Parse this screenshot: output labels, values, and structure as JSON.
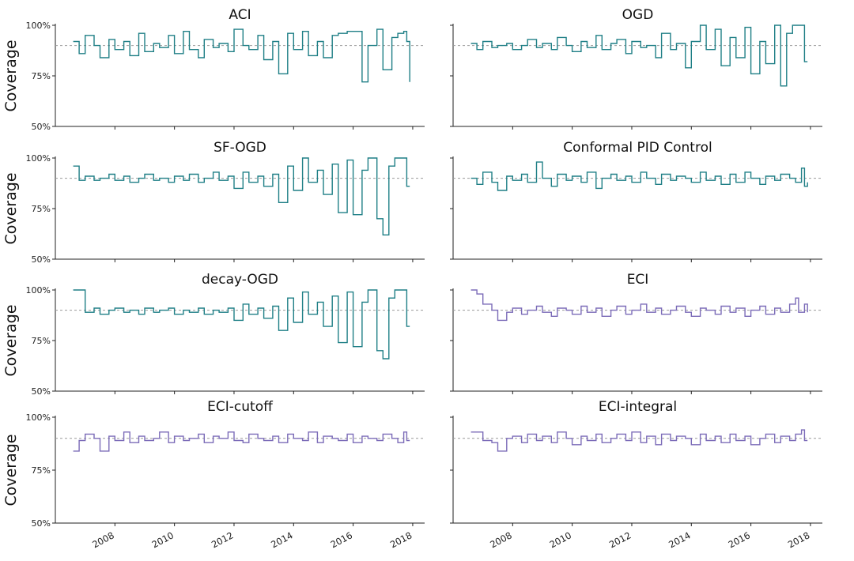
{
  "figure": {
    "ylabel": "Coverage",
    "x_ticks": [
      "2008",
      "2010",
      "2012",
      "2014",
      "2016",
      "2018"
    ],
    "y_ticks": [
      "100%",
      "75%",
      "50%"
    ],
    "colors": {
      "teal": "#1f7f86",
      "purple": "#7b6bb8",
      "reference": "#999999",
      "axis": "#222222"
    }
  },
  "chart_data": [
    {
      "type": "line",
      "title": "ACI",
      "color": "teal",
      "xlim": [
        2006.0,
        2018.4
      ],
      "ylim": [
        50,
        100
      ],
      "target": 90,
      "series": [
        {
          "name": "ACI",
          "x": [
            2006.6,
            2006.8,
            2007.0,
            2007.3,
            2007.5,
            2007.8,
            2008.0,
            2008.3,
            2008.5,
            2008.8,
            2009.0,
            2009.3,
            2009.5,
            2009.8,
            2010.0,
            2010.3,
            2010.5,
            2010.8,
            2011.0,
            2011.3,
            2011.5,
            2011.8,
            2012.0,
            2012.3,
            2012.5,
            2012.8,
            2013.0,
            2013.3,
            2013.5,
            2013.8,
            2014.0,
            2014.3,
            2014.5,
            2014.8,
            2015.0,
            2015.3,
            2015.5,
            2015.8,
            2016.0,
            2016.3,
            2016.5,
            2016.8,
            2017.0,
            2017.3,
            2017.5,
            2017.7,
            2017.8,
            2017.9
          ],
          "values": [
            92,
            86,
            95,
            90,
            84,
            93,
            88,
            92,
            85,
            96,
            87,
            91,
            89,
            95,
            86,
            97,
            88,
            84,
            93,
            89,
            91,
            87,
            98,
            90,
            88,
            95,
            83,
            92,
            76,
            96,
            88,
            97,
            85,
            92,
            84,
            95,
            96,
            97,
            97,
            72,
            90,
            98,
            78,
            94,
            96,
            97,
            92,
            72
          ]
        }
      ]
    },
    {
      "type": "line",
      "title": "OGD",
      "color": "teal",
      "xlim": [
        2006.0,
        2018.4
      ],
      "ylim": [
        50,
        100
      ],
      "target": 90,
      "series": [
        {
          "name": "OGD",
          "x": [
            2006.6,
            2006.8,
            2007.0,
            2007.3,
            2007.5,
            2007.8,
            2008.0,
            2008.3,
            2008.5,
            2008.8,
            2009.0,
            2009.3,
            2009.5,
            2009.8,
            2010.0,
            2010.3,
            2010.5,
            2010.8,
            2011.0,
            2011.3,
            2011.5,
            2011.8,
            2012.0,
            2012.3,
            2012.5,
            2012.8,
            2013.0,
            2013.3,
            2013.5,
            2013.8,
            2014.0,
            2014.3,
            2014.5,
            2014.8,
            2015.0,
            2015.3,
            2015.5,
            2015.8,
            2016.0,
            2016.3,
            2016.5,
            2016.8,
            2017.0,
            2017.2,
            2017.4,
            2017.6,
            2017.8,
            2017.9
          ],
          "values": [
            91,
            88,
            92,
            89,
            90,
            91,
            88,
            90,
            93,
            89,
            91,
            88,
            94,
            90,
            87,
            92,
            89,
            95,
            88,
            91,
            93,
            86,
            92,
            89,
            90,
            84,
            96,
            88,
            91,
            79,
            92,
            100,
            88,
            98,
            80,
            94,
            84,
            99,
            76,
            92,
            81,
            100,
            70,
            96,
            100,
            100,
            82,
            82
          ]
        }
      ]
    },
    {
      "type": "line",
      "title": "SF-OGD",
      "color": "teal",
      "xlim": [
        2006.0,
        2018.4
      ],
      "ylim": [
        50,
        100
      ],
      "target": 90,
      "series": [
        {
          "name": "SF-OGD",
          "x": [
            2006.6,
            2006.8,
            2007.0,
            2007.3,
            2007.5,
            2007.8,
            2008.0,
            2008.3,
            2008.5,
            2008.8,
            2009.0,
            2009.3,
            2009.5,
            2009.8,
            2010.0,
            2010.3,
            2010.5,
            2010.8,
            2011.0,
            2011.3,
            2011.5,
            2011.8,
            2012.0,
            2012.3,
            2012.5,
            2012.8,
            2013.0,
            2013.3,
            2013.5,
            2013.8,
            2014.0,
            2014.3,
            2014.5,
            2014.8,
            2015.0,
            2015.3,
            2015.5,
            2015.8,
            2016.0,
            2016.3,
            2016.5,
            2016.8,
            2017.0,
            2017.2,
            2017.4,
            2017.6,
            2017.8,
            2017.9
          ],
          "values": [
            96,
            89,
            91,
            89,
            90,
            92,
            89,
            91,
            88,
            90,
            92,
            89,
            90,
            88,
            91,
            89,
            92,
            88,
            90,
            93,
            89,
            91,
            85,
            93,
            88,
            91,
            86,
            92,
            78,
            96,
            84,
            100,
            88,
            94,
            82,
            97,
            73,
            99,
            72,
            94,
            100,
            70,
            62,
            96,
            100,
            100,
            86,
            86
          ]
        }
      ]
    },
    {
      "type": "line",
      "title": "Conformal PID Control",
      "color": "teal",
      "xlim": [
        2006.0,
        2018.4
      ],
      "ylim": [
        50,
        100
      ],
      "target": 90,
      "series": [
        {
          "name": "Conformal PID Control",
          "x": [
            2006.6,
            2006.8,
            2007.0,
            2007.3,
            2007.5,
            2007.8,
            2008.0,
            2008.3,
            2008.5,
            2008.8,
            2009.0,
            2009.3,
            2009.5,
            2009.8,
            2010.0,
            2010.3,
            2010.5,
            2010.8,
            2011.0,
            2011.3,
            2011.5,
            2011.8,
            2012.0,
            2012.3,
            2012.5,
            2012.8,
            2013.0,
            2013.3,
            2013.5,
            2013.8,
            2014.0,
            2014.3,
            2014.5,
            2014.8,
            2015.0,
            2015.3,
            2015.5,
            2015.8,
            2016.0,
            2016.3,
            2016.5,
            2016.8,
            2017.0,
            2017.3,
            2017.5,
            2017.7,
            2017.8,
            2017.9
          ],
          "values": [
            90,
            87,
            93,
            88,
            84,
            91,
            89,
            92,
            88,
            98,
            90,
            86,
            92,
            89,
            91,
            88,
            93,
            85,
            90,
            92,
            89,
            91,
            88,
            93,
            90,
            87,
            92,
            89,
            91,
            90,
            88,
            93,
            89,
            91,
            87,
            92,
            88,
            93,
            90,
            87,
            91,
            89,
            92,
            90,
            88,
            95,
            86,
            88
          ]
        }
      ]
    },
    {
      "type": "line",
      "title": "decay-OGD",
      "color": "teal",
      "xlim": [
        2006.0,
        2018.4
      ],
      "ylim": [
        50,
        100
      ],
      "target": 90,
      "series": [
        {
          "name": "decay-OGD",
          "x": [
            2006.6,
            2006.8,
            2007.0,
            2007.3,
            2007.5,
            2007.8,
            2008.0,
            2008.3,
            2008.5,
            2008.8,
            2009.0,
            2009.3,
            2009.5,
            2009.8,
            2010.0,
            2010.3,
            2010.5,
            2010.8,
            2011.0,
            2011.3,
            2011.5,
            2011.8,
            2012.0,
            2012.3,
            2012.5,
            2012.8,
            2013.0,
            2013.3,
            2013.5,
            2013.8,
            2014.0,
            2014.3,
            2014.5,
            2014.8,
            2015.0,
            2015.3,
            2015.5,
            2015.8,
            2016.0,
            2016.3,
            2016.5,
            2016.8,
            2017.0,
            2017.2,
            2017.4,
            2017.6,
            2017.8,
            2017.9
          ],
          "values": [
            100,
            100,
            89,
            91,
            88,
            90,
            91,
            89,
            90,
            88,
            91,
            89,
            90,
            91,
            88,
            90,
            89,
            91,
            88,
            90,
            89,
            91,
            85,
            93,
            88,
            91,
            86,
            92,
            80,
            96,
            84,
            99,
            88,
            94,
            82,
            97,
            74,
            99,
            72,
            94,
            100,
            70,
            66,
            96,
            100,
            100,
            82,
            82
          ]
        }
      ]
    },
    {
      "type": "line",
      "title": "ECI",
      "color": "purple",
      "xlim": [
        2006.0,
        2018.4
      ],
      "ylim": [
        50,
        100
      ],
      "target": 90,
      "series": [
        {
          "name": "ECI",
          "x": [
            2006.6,
            2006.8,
            2007.0,
            2007.3,
            2007.5,
            2007.8,
            2008.0,
            2008.3,
            2008.5,
            2008.8,
            2009.0,
            2009.3,
            2009.5,
            2009.8,
            2010.0,
            2010.3,
            2010.5,
            2010.8,
            2011.0,
            2011.3,
            2011.5,
            2011.8,
            2012.0,
            2012.3,
            2012.5,
            2012.8,
            2013.0,
            2013.3,
            2013.5,
            2013.8,
            2014.0,
            2014.3,
            2014.5,
            2014.8,
            2015.0,
            2015.3,
            2015.5,
            2015.8,
            2016.0,
            2016.3,
            2016.5,
            2016.8,
            2017.0,
            2017.3,
            2017.5,
            2017.6,
            2017.8,
            2017.9
          ],
          "values": [
            100,
            98,
            93,
            90,
            85,
            89,
            91,
            88,
            90,
            92,
            89,
            87,
            91,
            90,
            88,
            92,
            89,
            91,
            87,
            90,
            92,
            88,
            90,
            93,
            89,
            91,
            88,
            90,
            92,
            89,
            87,
            91,
            90,
            88,
            92,
            89,
            91,
            87,
            90,
            92,
            88,
            91,
            89,
            93,
            96,
            89,
            93,
            89
          ]
        }
      ]
    },
    {
      "type": "line",
      "title": "ECI-cutoff",
      "color": "purple",
      "xlim": [
        2006.0,
        2018.4
      ],
      "ylim": [
        50,
        100
      ],
      "target": 90,
      "series": [
        {
          "name": "ECI-cutoff",
          "x": [
            2006.6,
            2006.8,
            2007.0,
            2007.3,
            2007.5,
            2007.8,
            2008.0,
            2008.3,
            2008.5,
            2008.8,
            2009.0,
            2009.3,
            2009.5,
            2009.8,
            2010.0,
            2010.3,
            2010.5,
            2010.8,
            2011.0,
            2011.3,
            2011.5,
            2011.8,
            2012.0,
            2012.3,
            2012.5,
            2012.8,
            2013.0,
            2013.3,
            2013.5,
            2013.8,
            2014.0,
            2014.3,
            2014.5,
            2014.8,
            2015.0,
            2015.3,
            2015.5,
            2015.8,
            2016.0,
            2016.3,
            2016.5,
            2016.8,
            2017.0,
            2017.3,
            2017.5,
            2017.7,
            2017.8,
            2017.9
          ],
          "values": [
            84,
            89,
            92,
            90,
            84,
            91,
            89,
            93,
            88,
            91,
            89,
            90,
            93,
            88,
            91,
            89,
            90,
            92,
            88,
            91,
            90,
            93,
            89,
            88,
            92,
            90,
            89,
            91,
            88,
            92,
            90,
            89,
            93,
            88,
            91,
            90,
            89,
            92,
            88,
            91,
            90,
            89,
            92,
            90,
            88,
            93,
            89,
            89
          ]
        }
      ]
    },
    {
      "type": "line",
      "title": "ECI-integral",
      "color": "purple",
      "xlim": [
        2006.0,
        2018.4
      ],
      "ylim": [
        50,
        100
      ],
      "target": 90,
      "series": [
        {
          "name": "ECI-integral",
          "x": [
            2006.6,
            2006.8,
            2007.0,
            2007.3,
            2007.5,
            2007.8,
            2008.0,
            2008.3,
            2008.5,
            2008.8,
            2009.0,
            2009.3,
            2009.5,
            2009.8,
            2010.0,
            2010.3,
            2010.5,
            2010.8,
            2011.0,
            2011.3,
            2011.5,
            2011.8,
            2012.0,
            2012.3,
            2012.5,
            2012.8,
            2013.0,
            2013.3,
            2013.5,
            2013.8,
            2014.0,
            2014.3,
            2014.5,
            2014.8,
            2015.0,
            2015.3,
            2015.5,
            2015.8,
            2016.0,
            2016.3,
            2016.5,
            2016.8,
            2017.0,
            2017.3,
            2017.5,
            2017.7,
            2017.8,
            2017.9
          ],
          "values": [
            93,
            93,
            89,
            88,
            84,
            90,
            91,
            88,
            92,
            89,
            91,
            88,
            93,
            90,
            87,
            91,
            89,
            92,
            88,
            90,
            92,
            89,
            93,
            88,
            91,
            87,
            92,
            89,
            91,
            90,
            87,
            92,
            89,
            91,
            88,
            92,
            89,
            91,
            87,
            90,
            92,
            88,
            91,
            89,
            92,
            94,
            89,
            89
          ]
        }
      ]
    }
  ]
}
